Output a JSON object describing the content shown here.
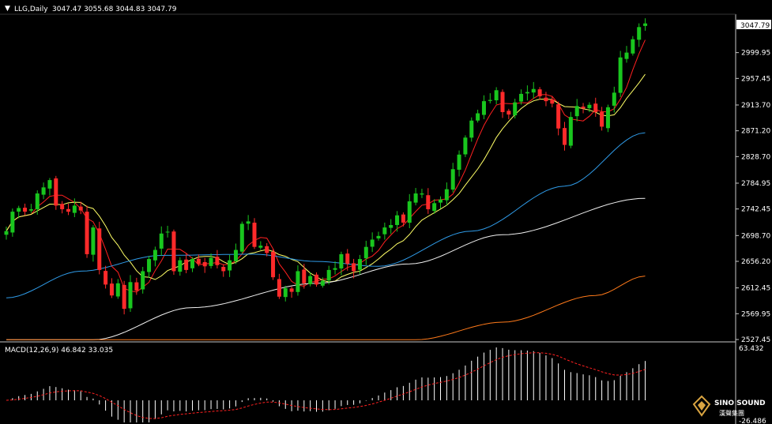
{
  "header": {
    "symbol": "LLG,Daily",
    "ohlc": "3047.47 3055.68 3044.83 3047.79"
  },
  "price_axis": {
    "ticks": [
      "2999.95",
      "2957.45",
      "2913.70",
      "2871.20",
      "2828.70",
      "2784.95",
      "2742.45",
      "2698.70",
      "2656.20",
      "2612.45",
      "2569.95",
      "2527.45"
    ],
    "current_price_label": "3047.79"
  },
  "macd_panel": {
    "title": "MACD(12,26,9) 46.842 33.035",
    "max_label": "63.432",
    "min_label": "-26.486"
  },
  "watermark": {
    "brand": "SINO SOUND",
    "subtitle": "漢聲集團"
  },
  "colors": {
    "background": "#000000",
    "bull_candle": "#19c61e",
    "bear_candle": "#ff2a2a",
    "ma_fast": "#ff2020",
    "ma_medium": "#ffff66",
    "ma_blue": "#2f9be8",
    "ma_white": "#f0f0f0",
    "ma_orange": "#ff7a1a",
    "macd_hist": "#ffffff",
    "macd_signal": "#ff2020"
  },
  "chart_data": {
    "type": "candlestick",
    "price_range": [
      2527.45,
      3058
    ],
    "candles_close": [
      2706,
      2738,
      2744,
      2738,
      2742,
      2768,
      2778,
      2790,
      2748,
      2742,
      2738,
      2748,
      2740,
      2668,
      2712,
      2642,
      2618,
      2600,
      2620,
      2578,
      2622,
      2608,
      2640,
      2660,
      2675,
      2702,
      2705,
      2640,
      2658,
      2642,
      2660,
      2652,
      2648,
      2662,
      2650,
      2640,
      2658,
      2675,
      2718,
      2722,
      2680,
      2682,
      2670,
      2630,
      2598,
      2612,
      2606,
      2640,
      2620,
      2632,
      2618,
      2624,
      2642,
      2645,
      2668,
      2652,
      2640,
      2660,
      2680,
      2692,
      2698,
      2712,
      2716,
      2732,
      2720,
      2755,
      2768,
      2768,
      2742,
      2752,
      2758,
      2775,
      2808,
      2832,
      2860,
      2888,
      2900,
      2920,
      2922,
      2938,
      2902,
      2898,
      2918,
      2932,
      2935,
      2940,
      2928,
      2920,
      2916,
      2875,
      2848,
      2894,
      2912,
      2908,
      2914,
      2902,
      2878,
      2910,
      2934,
      2992,
      3000,
      3022,
      3042,
      3048
    ]
  }
}
